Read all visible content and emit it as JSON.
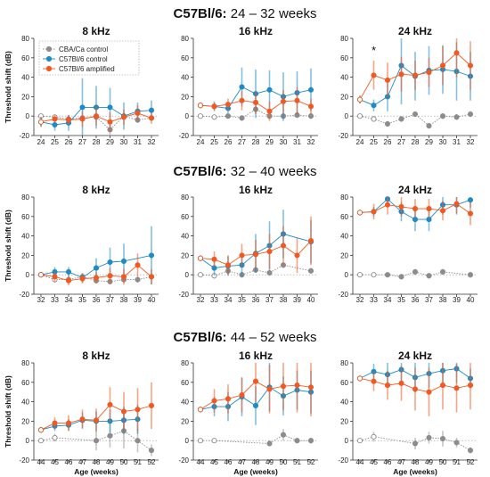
{
  "colors": {
    "cba": "#8c8c8c",
    "control": "#1f8bc4",
    "amplified": "#f05a22"
  },
  "legend": {
    "placement": "top-left of first panel",
    "entries": [
      {
        "label": "CBA/Ca control",
        "color": "#8c8c8c"
      },
      {
        "label": "C57Bl/6 control",
        "color": "#1f8bc4"
      },
      {
        "label": "C57Bl/6 amplified",
        "color": "#f05a22"
      }
    ]
  },
  "ylabel": "Threshold shift (dB)",
  "xlabel": "Age (weeks)",
  "ylim": [
    -20,
    80
  ],
  "yticks": [
    -20,
    0,
    20,
    40,
    60,
    80
  ],
  "rows": [
    {
      "title_bold": "C57Bl/6:",
      "title_rest": " 24 – 32 weeks"
    },
    {
      "title_bold": "C57Bl/6:",
      "title_rest": " 32 – 40 weeks"
    },
    {
      "title_bold": "C57Bl/6:",
      "title_rest": " 44 – 52 weeks"
    }
  ],
  "chart_data": [
    {
      "type": "line",
      "row": 0,
      "title": "8 kHz",
      "x": [
        24,
        25,
        26,
        27,
        28,
        29,
        30,
        31,
        32
      ],
      "series": [
        {
          "name": "CBA/Ca control",
          "values": [
            0,
            -1,
            -3,
            -2,
            -1,
            -14,
            0,
            -4,
            -2
          ]
        },
        {
          "name": "C57Bl/6 control",
          "values": [
            -6,
            -9,
            -7,
            9,
            9,
            9,
            0,
            5,
            6
          ]
        },
        {
          "name": "C57Bl/6 amplified",
          "values": [
            -6,
            -3,
            -4,
            -3,
            0,
            -6,
            -1,
            3,
            -2
          ]
        }
      ],
      "errors": [
        [
          2,
          2,
          2,
          3,
          3,
          5,
          3,
          3,
          3
        ],
        [
          5,
          6,
          8,
          30,
          22,
          20,
          14,
          9,
          10
        ],
        [
          5,
          4,
          5,
          8,
          10,
          10,
          8,
          8,
          6
        ]
      ]
    },
    {
      "type": "line",
      "row": 0,
      "title": "16 kHz",
      "x": [
        24,
        25,
        26,
        27,
        28,
        29,
        30,
        31,
        32
      ],
      "series": [
        {
          "name": "CBA/Ca control",
          "values": [
            0,
            -1,
            0,
            -2,
            7,
            0,
            0,
            1,
            0
          ]
        },
        {
          "name": "C57Bl/6 control",
          "values": [
            11,
            10,
            8,
            30,
            23,
            27,
            20,
            24,
            27
          ]
        },
        {
          "name": "C57Bl/6 amplified",
          "values": [
            11,
            10,
            12,
            16,
            14,
            5,
            15,
            16,
            10
          ]
        }
      ],
      "errors": [
        [
          2,
          2,
          2,
          3,
          3,
          3,
          3,
          3,
          3
        ],
        [
          3,
          5,
          5,
          20,
          25,
          20,
          25,
          22,
          22
        ],
        [
          3,
          4,
          6,
          10,
          12,
          10,
          12,
          14,
          8
        ]
      ]
    },
    {
      "type": "line",
      "row": 0,
      "title": "24 kHz",
      "x": [
        24,
        25,
        26,
        27,
        28,
        29,
        30,
        31,
        32
      ],
      "series": [
        {
          "name": "CBA/Ca control",
          "values": [
            0,
            -3,
            -8,
            -3,
            2,
            -10,
            0,
            -1,
            2
          ]
        },
        {
          "name": "C57Bl/6 control",
          "values": [
            17,
            11,
            20,
            52,
            41,
            47,
            48,
            46,
            41
          ]
        },
        {
          "name": "C57Bl/6 amplified",
          "values": [
            17,
            42,
            37,
            43,
            42,
            45,
            52,
            65,
            52
          ]
        }
      ],
      "errors": [
        [
          2,
          3,
          3,
          3,
          3,
          3,
          3,
          3,
          3
        ],
        [
          4,
          6,
          15,
          40,
          25,
          25,
          25,
          30,
          25
        ],
        [
          4,
          15,
          18,
          18,
          15,
          15,
          20,
          25,
          25
        ]
      ],
      "annotation": {
        "text": "*",
        "x": 25
      }
    },
    {
      "type": "line",
      "row": 1,
      "title": "8 kHz",
      "x": [
        32,
        33,
        34,
        35,
        36,
        37,
        38,
        39,
        40
      ],
      "series": [
        {
          "name": "CBA/Ca control",
          "values": [
            0,
            -5,
            -5,
            -2,
            -6,
            -7,
            -5,
            -5,
            -2
          ]
        },
        {
          "name": "C57Bl/6 control",
          "values": [
            0,
            3,
            3,
            -3,
            7,
            13,
            14,
            null,
            20
          ]
        },
        {
          "name": "C57Bl/6 amplified",
          "values": [
            0,
            -2,
            -6,
            -4,
            -3,
            -1,
            -2,
            10,
            -2
          ]
        }
      ],
      "errors": [
        [
          2,
          3,
          3,
          3,
          3,
          3,
          3,
          3,
          3
        ],
        [
          2,
          5,
          5,
          5,
          10,
          15,
          18,
          0,
          30
        ],
        [
          2,
          5,
          5,
          5,
          6,
          8,
          8,
          12,
          8
        ]
      ]
    },
    {
      "type": "line",
      "row": 1,
      "title": "16 kHz",
      "x": [
        32,
        33,
        34,
        35,
        36,
        37,
        38,
        39,
        40
      ],
      "series": [
        {
          "name": "CBA/Ca control",
          "values": [
            0,
            -1,
            4,
            0,
            5,
            2,
            10,
            null,
            4
          ]
        },
        {
          "name": "C57Bl/6 control",
          "values": [
            17,
            7,
            9,
            10,
            22,
            30,
            42,
            null,
            34
          ]
        },
        {
          "name": "C57Bl/6 amplified",
          "values": [
            17,
            16,
            10,
            20,
            21,
            24,
            30,
            20,
            35
          ]
        }
      ],
      "errors": [
        [
          2,
          3,
          3,
          3,
          3,
          3,
          3,
          0,
          3
        ],
        [
          3,
          8,
          10,
          12,
          20,
          25,
          25,
          0,
          22
        ],
        [
          3,
          8,
          10,
          12,
          15,
          18,
          20,
          18,
          25
        ]
      ]
    },
    {
      "type": "line",
      "row": 1,
      "title": "24 kHz",
      "x": [
        32,
        33,
        34,
        35,
        36,
        37,
        38,
        39,
        40
      ],
      "series": [
        {
          "name": "CBA/Ca control",
          "values": [
            0,
            0,
            0,
            -2,
            3,
            -1,
            3,
            null,
            0
          ]
        },
        {
          "name": "C57Bl/6 control",
          "values": [
            64,
            65,
            78,
            65,
            57,
            57,
            72,
            72,
            77
          ]
        },
        {
          "name": "C57Bl/6 amplified",
          "values": [
            64,
            65,
            72,
            70,
            68,
            68,
            66,
            73,
            63
          ]
        }
      ],
      "errors": [
        [
          2,
          2,
          2,
          3,
          3,
          3,
          3,
          0,
          3
        ],
        [
          3,
          5,
          8,
          10,
          12,
          12,
          10,
          10,
          8
        ],
        [
          3,
          8,
          10,
          10,
          10,
          10,
          10,
          10,
          12
        ]
      ]
    },
    {
      "type": "line",
      "row": 2,
      "title": "8 kHz",
      "x": [
        44,
        45,
        46,
        47,
        48,
        49,
        50,
        51,
        52
      ],
      "series": [
        {
          "name": "CBA/Ca control",
          "values": [
            0,
            3,
            null,
            null,
            0,
            5,
            10,
            0,
            -10
          ]
        },
        {
          "name": "C57Bl/6 control",
          "values": [
            11,
            15,
            16,
            21,
            20,
            20,
            21,
            22,
            null
          ]
        },
        {
          "name": "C57Bl/6 amplified",
          "values": [
            11,
            18,
            18,
            22,
            21,
            37,
            30,
            32,
            36
          ]
        }
      ],
      "errors": [
        [
          2,
          4,
          0,
          0,
          10,
          12,
          18,
          12,
          6
        ],
        [
          3,
          5,
          6,
          8,
          10,
          12,
          14,
          15,
          0
        ],
        [
          3,
          6,
          8,
          10,
          12,
          18,
          20,
          22,
          24
        ]
      ]
    },
    {
      "type": "line",
      "row": 2,
      "title": "16 kHz",
      "x": [
        44,
        45,
        46,
        47,
        48,
        49,
        50,
        51,
        52
      ],
      "series": [
        {
          "name": "CBA/Ca control",
          "values": [
            0,
            0,
            null,
            null,
            null,
            -3,
            6,
            0,
            0
          ]
        },
        {
          "name": "C57Bl/6 control",
          "values": [
            32,
            35,
            35,
            45,
            36,
            55,
            46,
            52,
            50
          ]
        },
        {
          "name": "C57Bl/6 amplified",
          "values": [
            32,
            41,
            43,
            47,
            61,
            53,
            56,
            57,
            55
          ]
        }
      ],
      "errors": [
        [
          2,
          2,
          0,
          0,
          0,
          3,
          6,
          3,
          3
        ],
        [
          3,
          10,
          15,
          20,
          20,
          25,
          20,
          20,
          22
        ],
        [
          3,
          12,
          15,
          18,
          22,
          25,
          25,
          28,
          30
        ]
      ]
    },
    {
      "type": "line",
      "row": 2,
      "title": "24 kHz",
      "x": [
        44,
        45,
        46,
        47,
        48,
        49,
        50,
        51,
        52
      ],
      "series": [
        {
          "name": "CBA/Ca control",
          "values": [
            0,
            4,
            null,
            null,
            -3,
            3,
            2,
            -2,
            -10
          ]
        },
        {
          "name": "C57Bl/6 control",
          "values": [
            64,
            71,
            68,
            73,
            65,
            69,
            72,
            74,
            64
          ]
        },
        {
          "name": "C57Bl/6 amplified",
          "values": [
            64,
            61,
            57,
            59,
            53,
            50,
            57,
            54,
            57
          ]
        }
      ],
      "errors": [
        [
          2,
          5,
          0,
          0,
          6,
          6,
          8,
          5,
          3
        ],
        [
          3,
          8,
          12,
          15,
          15,
          15,
          15,
          15,
          10
        ],
        [
          3,
          10,
          15,
          18,
          22,
          25,
          25,
          25,
          25
        ]
      ]
    }
  ]
}
